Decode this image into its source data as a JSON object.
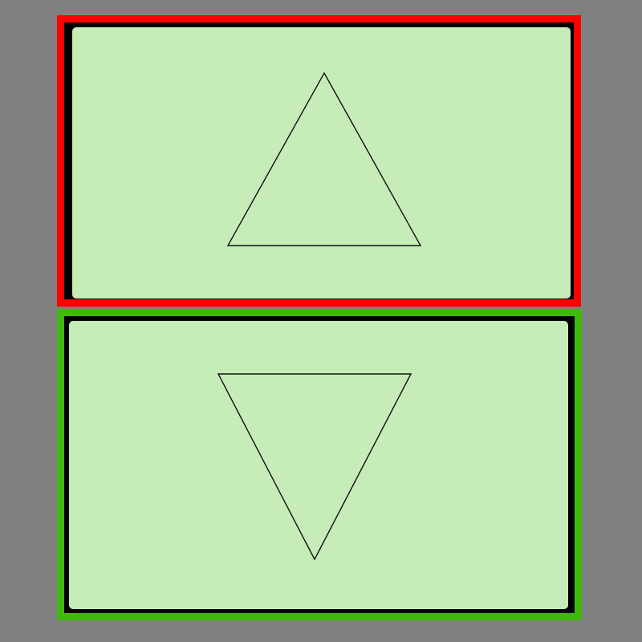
{
  "colors": {
    "background": "#808080",
    "panel_fill": "#c6ecb7",
    "panel_inner_border": "#000000",
    "shape_stroke": "#111111"
  },
  "panels": [
    {
      "state": "selected-red",
      "frame_color": "#ff0000",
      "shape": "up-triangle-icon"
    },
    {
      "state": "selected-green",
      "frame_color": "#3fba0c",
      "shape": "down-triangle-icon"
    }
  ]
}
